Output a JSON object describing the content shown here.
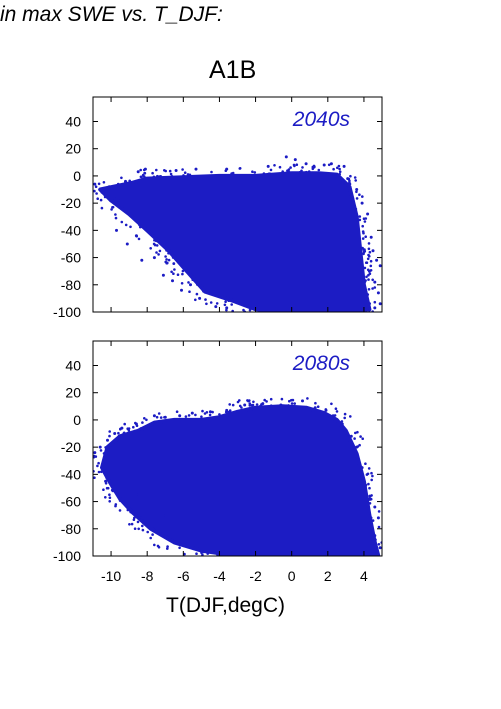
{
  "page": {
    "heading": "in max SWE vs. T_DJF:",
    "scenario": "A1B",
    "xlabel": "T(DJF,degC)"
  },
  "colors": {
    "points": "#1c1cc4",
    "frame": "#000000"
  },
  "chart_data": [
    {
      "type": "scatter",
      "title": "2040s",
      "xlim": [
        -11,
        5
      ],
      "ylim": [
        -100,
        58
      ],
      "yticks": [
        -100,
        -80,
        -60,
        -40,
        -20,
        0,
        20,
        40
      ],
      "xticks": [
        -10,
        -8,
        -6,
        -4,
        -2,
        0,
        2,
        4
      ],
      "show_x_tick_labels": false,
      "grid": false,
      "series": [
        {
          "cloud": [
            [
              -8.8,
              -5
            ],
            [
              -8,
              -2
            ],
            [
              -6,
              -1
            ],
            [
              -4,
              0
            ],
            [
              -2,
              0
            ],
            [
              0,
              2
            ],
            [
              1.5,
              2
            ],
            [
              2.5,
              1
            ],
            [
              3.2,
              -8
            ],
            [
              3.6,
              -30
            ],
            [
              3.8,
              -55
            ],
            [
              4,
              -80
            ],
            [
              4.3,
              -98
            ],
            [
              2,
              -100
            ],
            [
              0,
              -100
            ],
            [
              -2,
              -98
            ],
            [
              -3.2,
              -92
            ],
            [
              -4.8,
              -85
            ],
            [
              -5.8,
              -70
            ],
            [
              -6.8,
              -55
            ],
            [
              -8,
              -40
            ],
            [
              -9,
              -28
            ],
            [
              -10,
              -18
            ],
            [
              -10.6,
              -10
            ]
          ],
          "points": [
            [
              -10.5,
              -12
            ],
            [
              -10.1,
              -8
            ],
            [
              -9.8,
              -15
            ],
            [
              -9.6,
              -18
            ],
            [
              -9.2,
              -4
            ],
            [
              -9.0,
              -10
            ],
            [
              -8.5,
              3
            ],
            [
              -8.1,
              5
            ],
            [
              -6.4,
              4
            ],
            [
              -5.3,
              5
            ],
            [
              -3.6,
              5
            ],
            [
              -1.3,
              7
            ],
            [
              -0.3,
              14
            ],
            [
              0.2,
              12
            ],
            [
              0.8,
              9
            ],
            [
              1.8,
              8
            ],
            [
              2.2,
              9
            ],
            [
              2.9,
              7
            ],
            [
              3.1,
              -2
            ],
            [
              3.6,
              -10
            ],
            [
              3.9,
              -20
            ],
            [
              4.2,
              -28
            ],
            [
              4.4,
              -45
            ],
            [
              4.5,
              -55
            ],
            [
              4.7,
              -62
            ],
            [
              4.9,
              -66
            ],
            [
              4.3,
              -70
            ],
            [
              4.6,
              -78
            ],
            [
              4.8,
              -86
            ],
            [
              4.9,
              -94
            ],
            [
              4.6,
              -97
            ],
            [
              -4.2,
              -96
            ],
            [
              -5.1,
              -90
            ],
            [
              -6.1,
              -84
            ],
            [
              -7.1,
              -73
            ],
            [
              -8.3,
              -62
            ],
            [
              -9.1,
              -50
            ],
            [
              -9.7,
              -40
            ],
            [
              -8.6,
              -44
            ],
            [
              -7.6,
              -60
            ],
            [
              -6.6,
              -77
            ],
            [
              -5.6,
              -80
            ],
            [
              -3.6,
              -97
            ],
            [
              -10.9,
              -6
            ],
            [
              -6.9,
              -64
            ],
            [
              -2.6,
              -100
            ],
            [
              -1.1,
              -101
            ],
            [
              1.2,
              -101
            ],
            [
              3.1,
              -101
            ],
            [
              4.1,
              -100
            ]
          ]
        }
      ]
    },
    {
      "type": "scatter",
      "title": "2080s",
      "xlim": [
        -11,
        5
      ],
      "ylim": [
        -100,
        58
      ],
      "yticks": [
        -100,
        -80,
        -60,
        -40,
        -20,
        0,
        20,
        40
      ],
      "xticks": [
        -10,
        -8,
        -6,
        -4,
        -2,
        0,
        2,
        4
      ],
      "show_x_tick_labels": true,
      "grid": false,
      "series": [
        {
          "cloud": [
            [
              -10.2,
              -20
            ],
            [
              -9.5,
              -12
            ],
            [
              -8.5,
              -8
            ],
            [
              -7.6,
              -2
            ],
            [
              -6.5,
              0
            ],
            [
              -5,
              0
            ],
            [
              -4,
              2
            ],
            [
              -3,
              6
            ],
            [
              -2,
              9
            ],
            [
              -0.5,
              10
            ],
            [
              0.8,
              9
            ],
            [
              1.8,
              5
            ],
            [
              2.5,
              0
            ],
            [
              3,
              -8
            ],
            [
              3.6,
              -25
            ],
            [
              4,
              -45
            ],
            [
              4.3,
              -70
            ],
            [
              4.6,
              -90
            ],
            [
              4.8,
              -100
            ],
            [
              2,
              -101
            ],
            [
              0,
              -101
            ],
            [
              -2,
              -100
            ],
            [
              -3.5,
              -99
            ],
            [
              -5,
              -96
            ],
            [
              -6.5,
              -90
            ],
            [
              -7.8,
              -80
            ],
            [
              -8.8,
              -68
            ],
            [
              -9.5,
              -58
            ],
            [
              -10.1,
              -45
            ],
            [
              -10.5,
              -35
            ]
          ],
          "points": [
            [
              -10.9,
              -24
            ],
            [
              -10.6,
              -20
            ],
            [
              -10.2,
              -15
            ],
            [
              -9.8,
              -10
            ],
            [
              -9.4,
              -6
            ],
            [
              -8.6,
              -3
            ],
            [
              -7.6,
              3
            ],
            [
              -7.0,
              2
            ],
            [
              -6.2,
              3
            ],
            [
              -5.5,
              5
            ],
            [
              -4.5,
              6
            ],
            [
              -3.6,
              7
            ],
            [
              -2.6,
              11
            ],
            [
              -1.6,
              12
            ],
            [
              -0.6,
              11
            ],
            [
              0.6,
              14
            ],
            [
              1.3,
              9
            ],
            [
              1.9,
              7
            ],
            [
              2.3,
              3
            ],
            [
              2.8,
              -3
            ],
            [
              3.3,
              -12
            ],
            [
              3.6,
              -20
            ],
            [
              3.9,
              -35
            ],
            [
              4.1,
              -48
            ],
            [
              4.3,
              -58
            ],
            [
              4.6,
              -64
            ],
            [
              4.8,
              -72
            ],
            [
              4.6,
              -85
            ],
            [
              4.9,
              -94
            ],
            [
              4.7,
              -99
            ],
            [
              -10.3,
              -45
            ],
            [
              -9.9,
              -52
            ],
            [
              -9.3,
              -60
            ],
            [
              -8.9,
              -66
            ],
            [
              -8.3,
              -72
            ],
            [
              -7.6,
              -78
            ],
            [
              -6.9,
              -86
            ],
            [
              -5.9,
              -92
            ],
            [
              -4.9,
              -97
            ],
            [
              -3.9,
              -100
            ],
            [
              -7.1,
              -70
            ],
            [
              -8.6,
              -55
            ],
            [
              3.2,
              -101
            ],
            [
              1.6,
              -101
            ],
            [
              -0.9,
              -101
            ]
          ]
        }
      ]
    }
  ]
}
